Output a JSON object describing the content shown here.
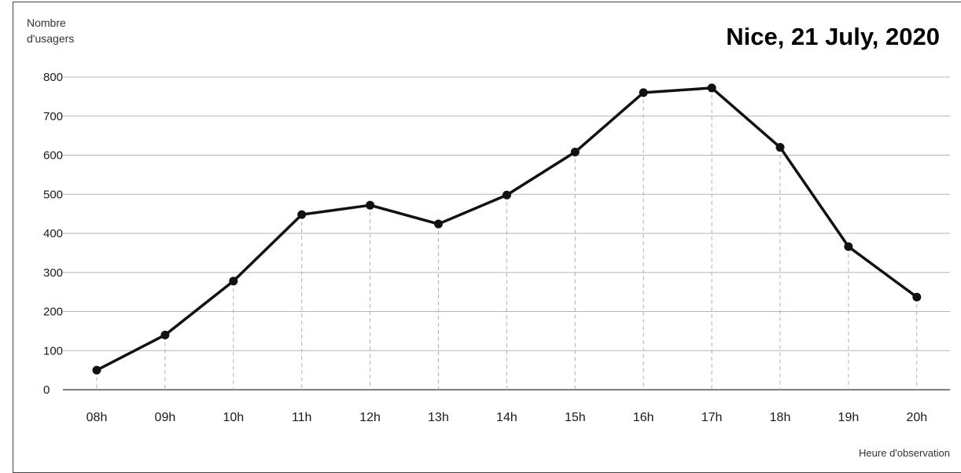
{
  "chart_data": {
    "type": "line",
    "title": "Nice, 21 July, 2020",
    "ylabel": [
      "Nombre",
      "d'usagers"
    ],
    "xlabel": "Heure d'observation",
    "categories": [
      "08h",
      "09h",
      "10h",
      "11h",
      "12h",
      "13h",
      "14h",
      "15h",
      "16h",
      "17h",
      "18h",
      "19h",
      "20h"
    ],
    "values": [
      50,
      140,
      278,
      448,
      472,
      424,
      498,
      608,
      760,
      772,
      620,
      366,
      237
    ],
    "yticks": [
      0,
      100,
      200,
      300,
      400,
      500,
      600,
      700,
      800
    ],
    "ylim": [
      0,
      800
    ],
    "grid": "horizontal",
    "line_color": "#111111",
    "grid_color": "#b5b5b5",
    "drop_line_color": "#b0b0b0"
  }
}
